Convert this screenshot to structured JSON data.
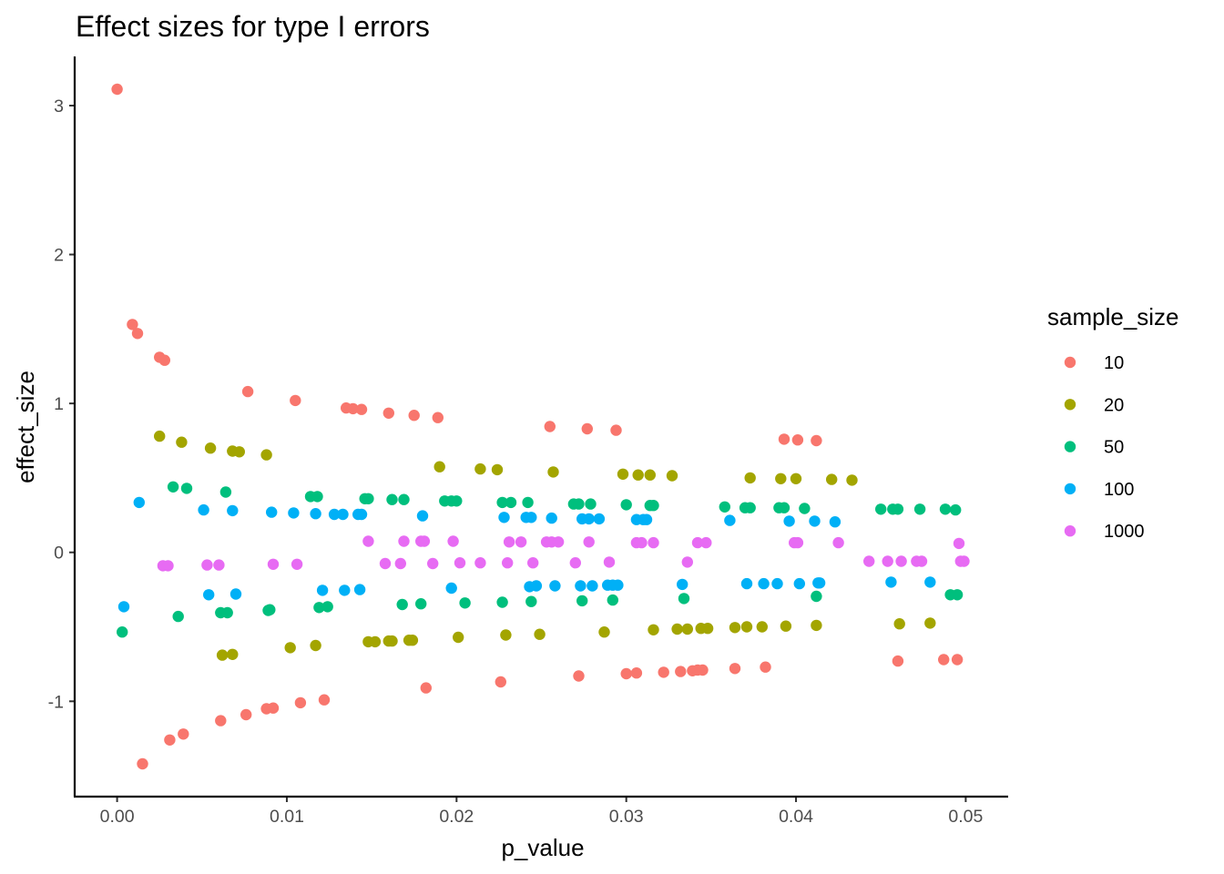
{
  "chart_data": {
    "type": "scatter",
    "title": "Effect sizes for type I errors",
    "xlabel": "p_value",
    "ylabel": "effect_size",
    "xlim": [
      -0.0025,
      0.0525
    ],
    "ylim": [
      -1.64,
      3.33
    ],
    "x_ticks": [
      0.0,
      0.01,
      0.02,
      0.03,
      0.04,
      0.05
    ],
    "x_tick_labels": [
      "0.00",
      "0.01",
      "0.02",
      "0.03",
      "0.04",
      "0.05"
    ],
    "y_ticks": [
      -1,
      0,
      1,
      2,
      3
    ],
    "y_tick_labels": [
      "-1",
      "0",
      "1",
      "2",
      "3"
    ],
    "grid": false,
    "legend": {
      "title": "sample_size",
      "position": "right"
    },
    "series": [
      {
        "name": "10",
        "color": "#F8766D",
        "x": [
          0.0,
          0.0009,
          0.0012,
          0.0025,
          0.0028,
          0.0077,
          0.0105,
          0.0135,
          0.0139,
          0.0144,
          0.016,
          0.0175,
          0.0189,
          0.0255,
          0.0277,
          0.0294,
          0.0393,
          0.0401,
          0.0412,
          0.0015,
          0.0031,
          0.0039,
          0.0061,
          0.0076,
          0.0088,
          0.0092,
          0.0108,
          0.0122,
          0.0182,
          0.0226,
          0.0272,
          0.03,
          0.0306,
          0.0322,
          0.0332,
          0.0339,
          0.0342,
          0.0345,
          0.0364,
          0.0382,
          0.046,
          0.0487,
          0.0495
        ],
        "y": [
          3.11,
          1.53,
          1.47,
          1.31,
          1.29,
          1.08,
          1.02,
          0.97,
          0.965,
          0.96,
          0.935,
          0.92,
          0.905,
          0.845,
          0.83,
          0.82,
          0.76,
          0.755,
          0.75,
          -1.42,
          -1.26,
          -1.22,
          -1.13,
          -1.09,
          -1.05,
          -1.045,
          -1.01,
          -0.99,
          -0.91,
          -0.87,
          -0.83,
          -0.815,
          -0.81,
          -0.805,
          -0.8,
          -0.795,
          -0.79,
          -0.79,
          -0.78,
          -0.77,
          -0.73,
          -0.72,
          -0.72
        ]
      },
      {
        "name": "20",
        "color": "#A3A500",
        "x": [
          0.0025,
          0.0038,
          0.0055,
          0.0068,
          0.0072,
          0.0088,
          0.019,
          0.0214,
          0.0224,
          0.0257,
          0.0298,
          0.0307,
          0.0314,
          0.0327,
          0.0373,
          0.0391,
          0.04,
          0.0421,
          0.0433,
          0.0062,
          0.0068,
          0.0102,
          0.0117,
          0.0148,
          0.0152,
          0.016,
          0.0162,
          0.0172,
          0.0174,
          0.0201,
          0.0229,
          0.0249,
          0.0287,
          0.0316,
          0.033,
          0.0336,
          0.0344,
          0.0348,
          0.0364,
          0.0371,
          0.038,
          0.0394,
          0.0412,
          0.0461,
          0.0479
        ],
        "y": [
          0.78,
          0.74,
          0.7,
          0.68,
          0.675,
          0.655,
          0.575,
          0.56,
          0.555,
          0.54,
          0.525,
          0.52,
          0.52,
          0.515,
          0.5,
          0.495,
          0.495,
          0.49,
          0.485,
          -0.69,
          -0.685,
          -0.64,
          -0.625,
          -0.6,
          -0.6,
          -0.595,
          -0.595,
          -0.59,
          -0.59,
          -0.57,
          -0.555,
          -0.55,
          -0.535,
          -0.52,
          -0.515,
          -0.515,
          -0.51,
          -0.51,
          -0.505,
          -0.5,
          -0.5,
          -0.495,
          -0.49,
          -0.48,
          -0.475
        ]
      },
      {
        "name": "50",
        "color": "#00BF7D",
        "x": [
          0.0003,
          0.0033,
          0.0036,
          0.0041,
          0.0061,
          0.0064,
          0.0065,
          0.0089,
          0.009,
          0.0114,
          0.0118,
          0.0119,
          0.0124,
          0.0146,
          0.0148,
          0.0162,
          0.0169,
          0.0168,
          0.0179,
          0.0193,
          0.0197,
          0.02,
          0.0205,
          0.0227,
          0.0227,
          0.0232,
          0.0242,
          0.0244,
          0.0269,
          0.0272,
          0.0274,
          0.0279,
          0.0292,
          0.03,
          0.0314,
          0.0316,
          0.0334,
          0.0358,
          0.037,
          0.0373,
          0.039,
          0.0393,
          0.0405,
          0.0412,
          0.045,
          0.0457,
          0.046,
          0.0473,
          0.0488,
          0.0491,
          0.0494,
          0.0495
        ],
        "y": [
          -0.535,
          0.44,
          -0.43,
          0.43,
          -0.405,
          0.405,
          -0.405,
          -0.39,
          -0.385,
          0.375,
          0.375,
          -0.37,
          -0.365,
          0.36,
          0.36,
          0.355,
          0.355,
          -0.35,
          -0.345,
          0.345,
          0.345,
          0.345,
          -0.34,
          0.335,
          -0.335,
          0.335,
          0.335,
          -0.33,
          0.325,
          0.325,
          -0.325,
          0.325,
          -0.32,
          0.32,
          0.315,
          0.315,
          -0.31,
          0.305,
          0.3,
          0.3,
          0.3,
          0.3,
          0.295,
          -0.295,
          0.29,
          0.29,
          0.29,
          0.29,
          0.29,
          -0.285,
          0.285,
          -0.285
        ]
      },
      {
        "name": "100",
        "color": "#00B0F6",
        "x": [
          0.0004,
          0.0013,
          0.0051,
          0.0054,
          0.0068,
          0.007,
          0.0091,
          0.0104,
          0.0117,
          0.0121,
          0.0128,
          0.0133,
          0.0134,
          0.0142,
          0.0144,
          0.0143,
          0.018,
          0.0197,
          0.0228,
          0.0241,
          0.0244,
          0.0256,
          0.0243,
          0.0247,
          0.0258,
          0.0274,
          0.0278,
          0.0284,
          0.028,
          0.0273,
          0.0289,
          0.0292,
          0.0295,
          0.0306,
          0.031,
          0.0312,
          0.0333,
          0.0361,
          0.0371,
          0.0381,
          0.0389,
          0.0396,
          0.0402,
          0.0411,
          0.0413,
          0.0414,
          0.0423,
          0.0456,
          0.0479
        ],
        "y": [
          -0.365,
          0.335,
          0.285,
          -0.285,
          0.28,
          -0.28,
          0.27,
          0.265,
          0.26,
          -0.255,
          0.255,
          0.255,
          -0.255,
          0.255,
          0.255,
          -0.25,
          0.245,
          -0.24,
          0.235,
          0.235,
          0.235,
          0.23,
          -0.23,
          -0.225,
          -0.225,
          0.225,
          0.225,
          0.225,
          -0.225,
          -0.225,
          -0.22,
          -0.22,
          -0.22,
          0.22,
          0.22,
          0.22,
          -0.215,
          0.215,
          -0.21,
          -0.21,
          -0.21,
          0.21,
          -0.21,
          0.21,
          -0.205,
          -0.205,
          0.205,
          -0.2,
          -0.2
        ]
      },
      {
        "name": "1000",
        "color": "#E76BF3",
        "x": [
          0.0027,
          0.003,
          0.0053,
          0.006,
          0.0092,
          0.0106,
          0.0148,
          0.0158,
          0.0169,
          0.0167,
          0.0179,
          0.0181,
          0.0186,
          0.0198,
          0.0202,
          0.0214,
          0.0231,
          0.023,
          0.0238,
          0.0245,
          0.0253,
          0.0256,
          0.026,
          0.027,
          0.0278,
          0.029,
          0.0306,
          0.0309,
          0.0316,
          0.0336,
          0.0342,
          0.0347,
          0.0399,
          0.0401,
          0.0425,
          0.0443,
          0.0454,
          0.0462,
          0.0471,
          0.0474,
          0.0496,
          0.0497,
          0.0499
        ],
        "y": [
          -0.09,
          -0.09,
          -0.085,
          -0.085,
          -0.08,
          -0.08,
          0.075,
          -0.075,
          0.075,
          -0.075,
          0.075,
          0.075,
          -0.075,
          0.075,
          -0.07,
          -0.07,
          0.07,
          -0.07,
          0.07,
          -0.07,
          0.07,
          0.07,
          0.07,
          -0.07,
          0.07,
          -0.065,
          0.065,
          0.065,
          0.065,
          -0.065,
          0.065,
          0.065,
          0.065,
          0.065,
          0.065,
          -0.06,
          -0.06,
          -0.06,
          -0.06,
          -0.06,
          0.06,
          -0.06,
          -0.06
        ]
      }
    ]
  }
}
